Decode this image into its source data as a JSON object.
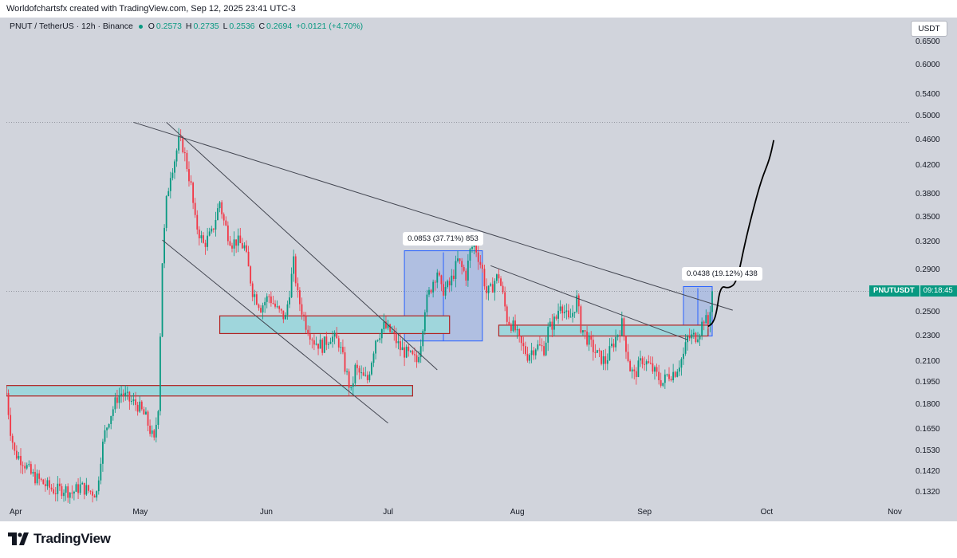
{
  "header": {
    "author_line": "Worldofchartsfx created with TradingView.com, Sep 12, 2025 23:41 UTC-3"
  },
  "symbol": {
    "title": "PNUT / TetherUS · 12h · Binance",
    "open_label": "O",
    "open": "0.2573",
    "high_label": "H",
    "high": "0.2735",
    "low_label": "L",
    "low": "0.2536",
    "close_label": "C",
    "close": "0.2694",
    "change": "+0.0121 (+4.70%)"
  },
  "currency_button": "USDT",
  "price_tag": {
    "symbol": "PNUTUSDT",
    "countdown": "09:18:45"
  },
  "brand": "TradingView",
  "colors": {
    "up": "#089981",
    "down": "#f23645",
    "background": "#d1d4dc",
    "zone_fill": "#9fd6dc",
    "zone_border": "#b22222",
    "measure_fill": "#8fa9e6"
  },
  "chart_data": {
    "type": "candlestick",
    "x_axis_labels": [
      "Apr",
      "May",
      "Jun",
      "Jul",
      "Aug",
      "Sep",
      "Oct",
      "Nov"
    ],
    "y_axis_labels": [
      "0.6500",
      "0.6000",
      "0.5400",
      "0.5000",
      "0.4600",
      "0.4200",
      "0.3800",
      "0.3500",
      "0.3200",
      "0.2900",
      "0.2500",
      "0.2300",
      "0.2100",
      "0.1950",
      "0.1800",
      "0.1650",
      "0.1530",
      "0.1420",
      "0.1320"
    ],
    "y_scale": "log",
    "ylim": [
      0.127,
      0.71
    ],
    "xlim": [
      0,
      220
    ],
    "x_ticks_day_index": [
      0,
      30,
      61,
      91,
      122,
      153,
      183,
      214
    ],
    "last_price": 0.2694,
    "dotted_level": 0.49,
    "series_path": [
      [
        0,
        0.188
      ],
      [
        1,
        0.165
      ],
      [
        2,
        0.152
      ],
      [
        4,
        0.148
      ],
      [
        6,
        0.141
      ],
      [
        8,
        0.138
      ],
      [
        10,
        0.135
      ],
      [
        12,
        0.133
      ],
      [
        14,
        0.134
      ],
      [
        16,
        0.132
      ],
      [
        18,
        0.135
      ],
      [
        20,
        0.133
      ],
      [
        22,
        0.132
      ],
      [
        23,
        0.15
      ],
      [
        24,
        0.163
      ],
      [
        25,
        0.172
      ],
      [
        26,
        0.178
      ],
      [
        27,
        0.185
      ],
      [
        28,
        0.188
      ],
      [
        30,
        0.183
      ],
      [
        32,
        0.18
      ],
      [
        34,
        0.172
      ],
      [
        36,
        0.158
      ],
      [
        37,
        0.18
      ],
      [
        38,
        0.3
      ],
      [
        39,
        0.37
      ],
      [
        40,
        0.41
      ],
      [
        41,
        0.43
      ],
      [
        42,
        0.458
      ],
      [
        43,
        0.45
      ],
      [
        44,
        0.42
      ],
      [
        45,
        0.39
      ],
      [
        46,
        0.345
      ],
      [
        48,
        0.318
      ],
      [
        50,
        0.33
      ],
      [
        52,
        0.37
      ],
      [
        53,
        0.345
      ],
      [
        54,
        0.33
      ],
      [
        55,
        0.32
      ],
      [
        56,
        0.322
      ],
      [
        58,
        0.315
      ],
      [
        60,
        0.27
      ],
      [
        62,
        0.255
      ],
      [
        64,
        0.265
      ],
      [
        66,
        0.252
      ],
      [
        68,
        0.245
      ],
      [
        70,
        0.298
      ],
      [
        71,
        0.265
      ],
      [
        73,
        0.24
      ],
      [
        75,
        0.226
      ],
      [
        77,
        0.222
      ],
      [
        79,
        0.23
      ],
      [
        81,
        0.225
      ],
      [
        83,
        0.2
      ],
      [
        84,
        0.188
      ],
      [
        85,
        0.205
      ],
      [
        87,
        0.198
      ],
      [
        88,
        0.197
      ],
      [
        90,
        0.228
      ],
      [
        92,
        0.238
      ],
      [
        94,
        0.232
      ],
      [
        96,
        0.22
      ],
      [
        98,
        0.215
      ],
      [
        100,
        0.21
      ],
      [
        101,
        0.226
      ],
      [
        102,
        0.255
      ],
      [
        104,
        0.28
      ],
      [
        105,
        0.29
      ],
      [
        106,
        0.27
      ],
      [
        108,
        0.275
      ],
      [
        110,
        0.3
      ],
      [
        112,
        0.285
      ],
      [
        113,
        0.31
      ],
      [
        114,
        0.32
      ],
      [
        115,
        0.305
      ],
      [
        116,
        0.29
      ],
      [
        117,
        0.268
      ],
      [
        118,
        0.27
      ],
      [
        119,
        0.28
      ],
      [
        120,
        0.285
      ],
      [
        121,
        0.265
      ],
      [
        122,
        0.245
      ],
      [
        124,
        0.235
      ],
      [
        125,
        0.225
      ],
      [
        127,
        0.215
      ],
      [
        129,
        0.222
      ],
      [
        131,
        0.22
      ],
      [
        132,
        0.235
      ],
      [
        134,
        0.245
      ],
      [
        135,
        0.26
      ],
      [
        137,
        0.242
      ],
      [
        138,
        0.25
      ],
      [
        139,
        0.262
      ],
      [
        140,
        0.238
      ],
      [
        142,
        0.225
      ],
      [
        144,
        0.215
      ],
      [
        146,
        0.21
      ],
      [
        148,
        0.225
      ],
      [
        150,
        0.24
      ],
      [
        152,
        0.205
      ],
      [
        153,
        0.2
      ],
      [
        155,
        0.212
      ],
      [
        157,
        0.206
      ],
      [
        159,
        0.198
      ],
      [
        160,
        0.195
      ],
      [
        161,
        0.2
      ],
      [
        163,
        0.203
      ],
      [
        165,
        0.215
      ],
      [
        166,
        0.228
      ],
      [
        168,
        0.23
      ],
      [
        169,
        0.235
      ],
      [
        170,
        0.245
      ],
      [
        171,
        0.24
      ],
      [
        172,
        0.2694
      ]
    ],
    "projection_path": [
      [
        171,
        0.238
      ],
      [
        172,
        0.24
      ],
      [
        173,
        0.248
      ],
      [
        174,
        0.275
      ],
      [
        176,
        0.272
      ],
      [
        178,
        0.278
      ],
      [
        180,
        0.32
      ],
      [
        182,
        0.36
      ],
      [
        184,
        0.4
      ],
      [
        186,
        0.43
      ],
      [
        187,
        0.46
      ]
    ],
    "trendlines": [
      {
        "name": "descending-trendline",
        "from": [
          31,
          0.49
        ],
        "to": [
          177,
          0.252
        ]
      },
      {
        "name": "upper-channel-line",
        "from": [
          39,
          0.49
        ],
        "to": [
          105,
          0.204
        ]
      },
      {
        "name": "lower-channel-line",
        "from": [
          38,
          0.323
        ],
        "to": [
          93,
          0.169
        ]
      },
      {
        "name": "minor-trendline",
        "from": [
          118,
          0.295
        ],
        "to": [
          166,
          0.227
        ]
      }
    ],
    "zones": [
      {
        "name": "support-zone-lower",
        "x0": 0,
        "x1": 99,
        "y0": 0.186,
        "y1": 0.193
      },
      {
        "name": "support-zone-mid",
        "x0": 52,
        "x1": 108,
        "y0": 0.232,
        "y1": 0.247
      },
      {
        "name": "support-zone-right",
        "x0": 120,
        "x1": 171,
        "y0": 0.23,
        "y1": 0.239
      }
    ],
    "measurements": [
      {
        "name": "measure-july",
        "label": "0.0853 (37.71%) 853",
        "x0": 97,
        "x1": 116,
        "y0": 0.226,
        "y1": 0.311
      },
      {
        "name": "measure-sept",
        "label": "0.0438 (19.12%) 438",
        "x0": 165,
        "x1": 172,
        "y0": 0.23,
        "y1": 0.274
      }
    ]
  }
}
